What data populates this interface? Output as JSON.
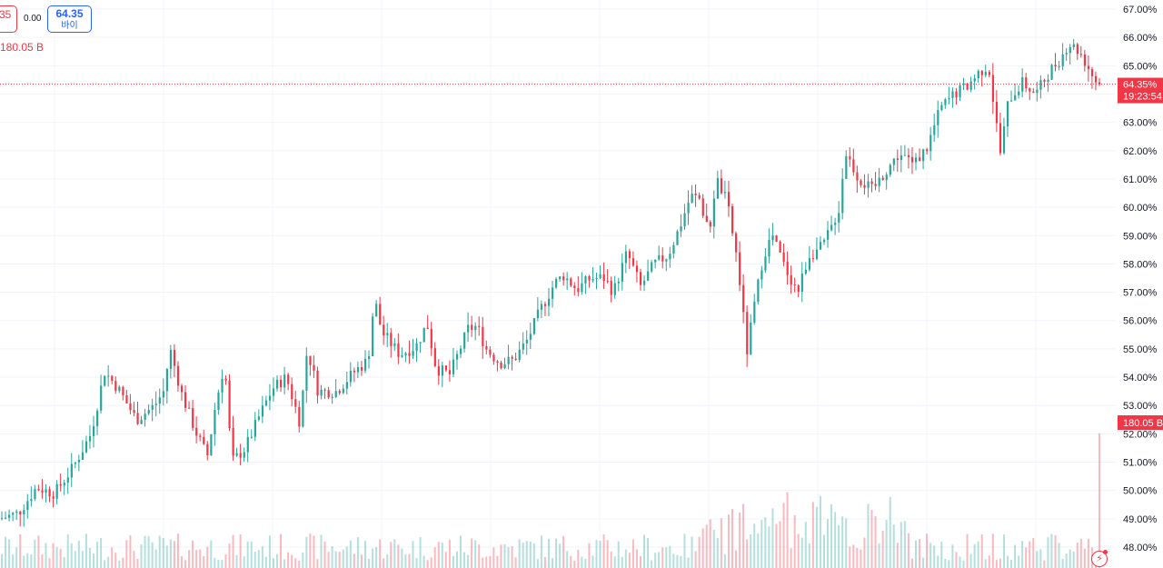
{
  "header": {
    "sell_price": "35",
    "spread": "0.00",
    "buy_price": "64.35",
    "buy_label": "바이",
    "volume_label": "180.05 B"
  },
  "colors": {
    "up": "#26a69a",
    "down": "#f23645",
    "grid": "#f0f3fa",
    "axis_text": "#131722",
    "price_line": "#f23645"
  },
  "chart_data": {
    "type": "candlestick",
    "y_axis_unit": "%",
    "y_range": [
      48.0,
      67.0
    ],
    "y_ticks": [
      "67.00%",
      "66.00%",
      "65.00%",
      "64.00%",
      "63.00%",
      "62.00%",
      "61.00%",
      "60.00%",
      "59.00%",
      "58.00%",
      "57.00%",
      "56.00%",
      "55.00%",
      "54.00%",
      "53.00%",
      "52.00%",
      "51.00%",
      "50.00%",
      "49.00%",
      "48.00%"
    ],
    "current_price": 64.35,
    "current_price_label": "64.35%",
    "countdown_label": "19:23:54",
    "last_volume_label": "180.05 B",
    "candle_count": 300,
    "close_trend": [
      [
        0,
        49.0
      ],
      [
        20,
        49.2
      ],
      [
        40,
        50.1
      ],
      [
        60,
        49.9
      ],
      [
        80,
        50.8
      ],
      [
        100,
        52.0
      ],
      [
        115,
        54.2
      ],
      [
        130,
        53.6
      ],
      [
        150,
        52.5
      ],
      [
        170,
        53.0
      ],
      [
        180,
        53.5
      ],
      [
        187,
        55.0
      ],
      [
        200,
        53.4
      ],
      [
        215,
        52.1
      ],
      [
        228,
        51.2
      ],
      [
        237,
        53.0
      ],
      [
        247,
        54.5
      ],
      [
        255,
        51.0
      ],
      [
        270,
        51.5
      ],
      [
        285,
        52.6
      ],
      [
        300,
        53.6
      ],
      [
        315,
        54.0
      ],
      [
        330,
        52.4
      ],
      [
        338,
        55.0
      ],
      [
        350,
        53.5
      ],
      [
        370,
        53.5
      ],
      [
        390,
        54.2
      ],
      [
        405,
        54.6
      ],
      [
        412,
        56.8
      ],
      [
        420,
        55.6
      ],
      [
        440,
        54.8
      ],
      [
        458,
        55.1
      ],
      [
        470,
        55.9
      ],
      [
        480,
        54.3
      ],
      [
        495,
        54.1
      ],
      [
        515,
        55.7
      ],
      [
        525,
        55.8
      ],
      [
        535,
        55.0
      ],
      [
        550,
        54.5
      ],
      [
        565,
        54.6
      ],
      [
        580,
        55.3
      ],
      [
        595,
        56.4
      ],
      [
        610,
        57.3
      ],
      [
        620,
        57.6
      ],
      [
        635,
        57.1
      ],
      [
        650,
        57.5
      ],
      [
        665,
        57.5
      ],
      [
        675,
        57.0
      ],
      [
        690,
        58.4
      ],
      [
        705,
        57.2
      ],
      [
        720,
        58.0
      ],
      [
        735,
        58.3
      ],
      [
        748,
        59.3
      ],
      [
        760,
        60.4
      ],
      [
        770,
        60.3
      ],
      [
        780,
        59.0
      ],
      [
        788,
        61.0
      ],
      [
        800,
        60.2
      ],
      [
        812,
        58.0
      ],
      [
        822,
        54.9
      ],
      [
        830,
        56.5
      ],
      [
        840,
        58.3
      ],
      [
        850,
        59.0
      ],
      [
        862,
        58.0
      ],
      [
        878,
        57.0
      ],
      [
        890,
        58.3
      ],
      [
        905,
        58.6
      ],
      [
        915,
        59.3
      ],
      [
        924,
        60.0
      ],
      [
        930,
        62.0
      ],
      [
        945,
        61.0
      ],
      [
        960,
        60.6
      ],
      [
        975,
        61.3
      ],
      [
        990,
        61.9
      ],
      [
        1005,
        61.5
      ],
      [
        1020,
        62.1
      ],
      [
        1035,
        63.5
      ],
      [
        1050,
        64.0
      ],
      [
        1065,
        64.3
      ],
      [
        1078,
        64.8
      ],
      [
        1088,
        65.0
      ],
      [
        1095,
        63.3
      ],
      [
        1101,
        61.9
      ],
      [
        1110,
        63.8
      ],
      [
        1125,
        64.4
      ],
      [
        1140,
        64.0
      ],
      [
        1155,
        64.8
      ],
      [
        1168,
        65.3
      ],
      [
        1176,
        65.8
      ],
      [
        1188,
        65.5
      ],
      [
        1200,
        64.8
      ],
      [
        1208,
        64.35
      ]
    ]
  }
}
